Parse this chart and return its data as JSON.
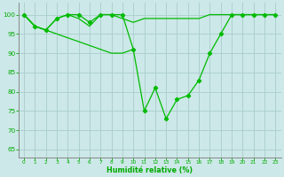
{
  "series_main": {
    "x": [
      0,
      1,
      2,
      3,
      4,
      5,
      6,
      7,
      8,
      9,
      10,
      11,
      12,
      13,
      14,
      15,
      16,
      17,
      18,
      19,
      20,
      21,
      22,
      23
    ],
    "y": [
      100,
      97,
      96,
      99,
      100,
      100,
      98,
      100,
      100,
      100,
      91,
      75,
      81,
      73,
      78,
      79,
      83,
      90,
      95,
      100,
      100,
      100,
      100,
      100
    ]
  },
  "series_line2": {
    "x": [
      0,
      1,
      2,
      3,
      4,
      5,
      6,
      7,
      8,
      9,
      10,
      11,
      12,
      13,
      14,
      15,
      16,
      17,
      18,
      19,
      20,
      21,
      22,
      23
    ],
    "y": [
      100,
      97,
      96,
      99,
      100,
      99,
      97,
      100,
      100,
      99,
      98,
      99,
      99,
      99,
      99,
      99,
      99,
      100,
      100,
      100,
      100,
      100,
      100,
      100
    ]
  },
  "series_line3": {
    "x": [
      0,
      1,
      2,
      3,
      4,
      5,
      6,
      7,
      8,
      9,
      10
    ],
    "y": [
      100,
      97,
      96,
      95,
      94,
      93,
      92,
      91,
      90,
      90,
      91
    ]
  },
  "background_color": "#cce8e8",
  "grid_color": "#aacccc",
  "line_color": "#00bb00",
  "tick_color": "#00aa00",
  "label_color": "#00aa00",
  "xlabel": "Humidité relative (%)",
  "ylabel_ticks": [
    65,
    70,
    75,
    80,
    85,
    90,
    95,
    100
  ],
  "xlim": [
    -0.5,
    23.5
  ],
  "ylim": [
    63,
    103
  ],
  "xticks": [
    0,
    1,
    2,
    3,
    4,
    5,
    6,
    7,
    8,
    9,
    10,
    11,
    12,
    13,
    14,
    15,
    16,
    17,
    18,
    19,
    20,
    21,
    22,
    23
  ]
}
